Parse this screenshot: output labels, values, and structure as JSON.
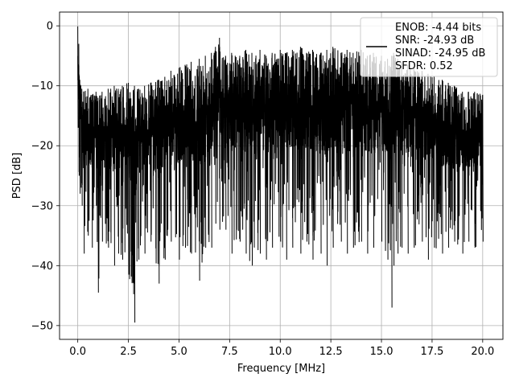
{
  "chart_data": {
    "type": "line",
    "title": "",
    "xlabel": "Frequency [MHz]",
    "ylabel": "PSD [dB]",
    "xlim": [
      -0.9,
      21
    ],
    "ylim": [
      -52.3,
      2.3
    ],
    "xticks": [
      0.0,
      2.5,
      5.0,
      7.5,
      10.0,
      12.5,
      15.0,
      17.5,
      20.0
    ],
    "xtick_labels": [
      "0.0",
      "2.5",
      "5.0",
      "7.5",
      "10.0",
      "12.5",
      "15.0",
      "17.5",
      "20.0"
    ],
    "yticks": [
      0,
      -10,
      -20,
      -30,
      -40,
      -50
    ],
    "ytick_labels": [
      "0",
      "−10",
      "−20",
      "−30",
      "−40",
      "−50"
    ],
    "grid": true,
    "legend_position": "top-right",
    "legend_lines": [
      "ENOB: -4.44 bits",
      "SNR: -24.93 dB",
      "SINAD: -24.95 dB",
      "SFDR: 0.52"
    ],
    "series": [
      {
        "color": "#000000",
        "x": [
          0.0,
          0.05,
          0.1,
          0.15,
          0.2,
          0.3,
          0.5,
          0.7,
          0.9,
          1.0,
          1.2,
          1.5,
          1.8,
          2.0,
          2.2,
          2.5,
          2.8,
          3.0,
          3.3,
          3.6,
          4.0,
          4.3,
          4.6,
          5.0,
          5.3,
          5.6,
          6.0,
          6.3,
          6.6,
          6.8,
          7.0,
          7.3,
          7.6,
          8.0,
          8.3,
          8.6,
          9.0,
          9.3,
          9.6,
          10.0,
          10.3,
          10.6,
          11.0,
          11.3,
          11.6,
          12.0,
          12.3,
          12.6,
          13.0,
          13.3,
          13.6,
          14.0,
          14.3,
          14.6,
          15.0,
          15.3,
          15.5,
          15.6,
          15.8,
          16.0,
          16.3,
          16.6,
          17.0,
          17.3,
          17.6,
          18.0,
          18.3,
          18.6,
          19.0,
          19.3,
          19.6,
          20.0
        ],
        "upper": [
          -0.1,
          -3,
          -9,
          -10,
          -10.5,
          -11,
          -10.5,
          -11.5,
          -11,
          -12,
          -11,
          -10.5,
          -10,
          -10.5,
          -10,
          -9.5,
          -10,
          -10.5,
          -10,
          -9.5,
          -9,
          -8.5,
          -7.5,
          -7,
          -6.5,
          -6,
          -5.5,
          -5,
          -4.5,
          -3.5,
          -2,
          -5,
          -4.5,
          -5,
          -4,
          -4.5,
          -4,
          -5,
          -4.5,
          -4,
          -4.5,
          -4,
          -3.5,
          -4.5,
          -4,
          -4.5,
          -4,
          -3.5,
          -4.5,
          -4,
          -4.5,
          -4,
          -5,
          -4.5,
          -5,
          -5.5,
          -5,
          -4.5,
          -5.5,
          -6,
          -6.5,
          -7,
          -7.5,
          -8,
          -8.5,
          -9,
          -9.5,
          -10,
          -11,
          -11,
          -11,
          -11.5
        ],
        "lower": [
          -17,
          -25,
          -28,
          -27,
          -30,
          -38,
          -35,
          -37,
          -30,
          -44.5,
          -36,
          -37,
          -40,
          -38,
          -39,
          -41.5,
          -49.5,
          -39,
          -38,
          -36,
          -43,
          -39,
          -36,
          -39,
          -37,
          -38,
          -42.5,
          -37,
          -37,
          -33,
          -34,
          -34,
          -38,
          -36,
          -38,
          -40,
          -38,
          -39,
          -37,
          -36,
          -39,
          -37,
          -38,
          -36,
          -39,
          -38,
          -40,
          -37,
          -36,
          -38,
          -37,
          -36,
          -38,
          -37,
          -36,
          -39,
          -47,
          -40,
          -38,
          -37,
          -38,
          -37,
          -36,
          -39,
          -37,
          -38,
          -37,
          -36,
          -38,
          -36,
          -37,
          -36
        ]
      }
    ]
  }
}
